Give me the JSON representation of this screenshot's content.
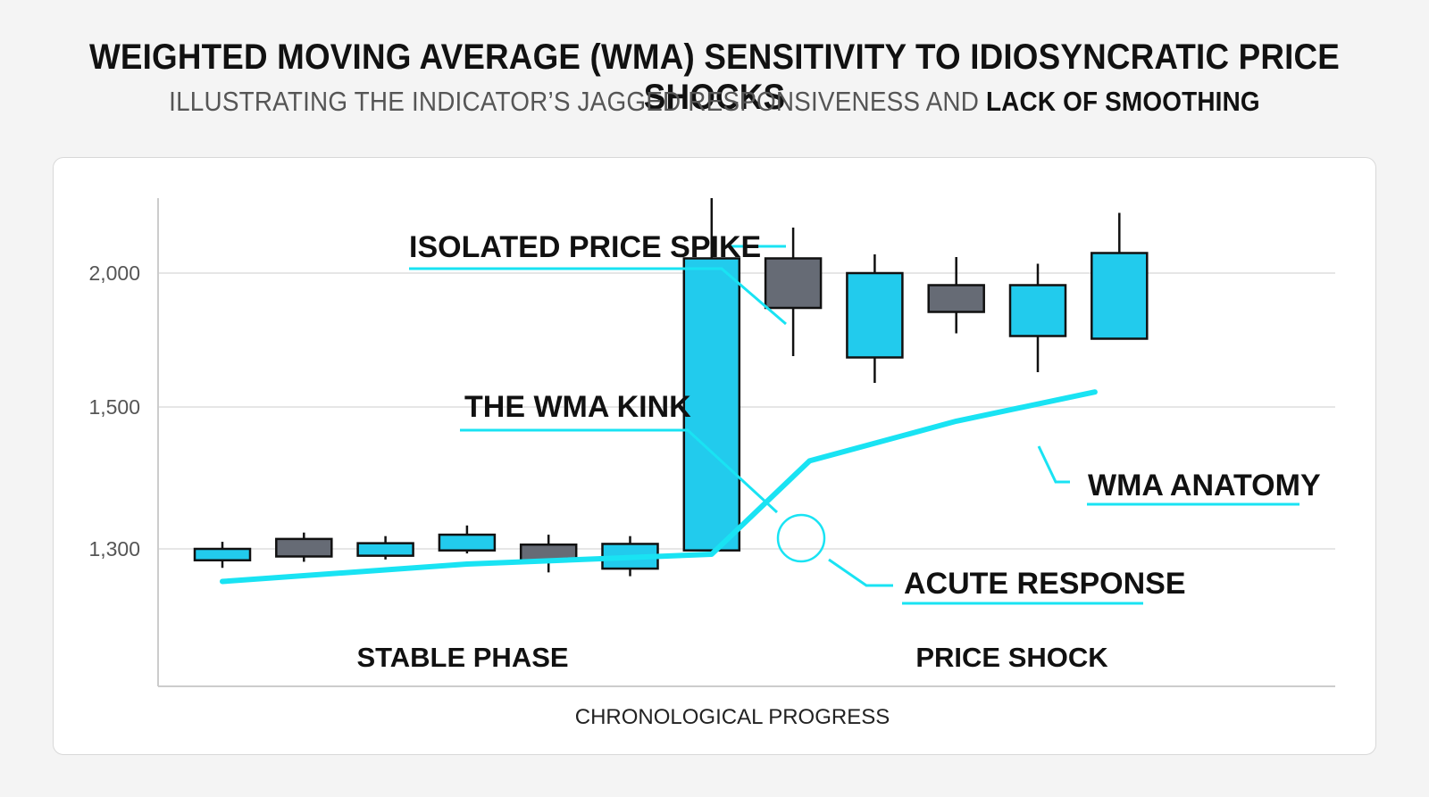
{
  "title": "WEIGHTED MOVING AVERAGE (WMA) SENSITIVITY TO IDIOSYNCRATIC PRICE SHOCKS",
  "subtitle": {
    "regular": "ILLUSTRATING THE INDICATOR’S JAGGED RESPONSIVENESS AND ",
    "bold": "LACK OF SMOOTHING"
  },
  "colors": {
    "bullish": "#22cbed",
    "bearish": "#666b75",
    "wma_line": "#19e3f3",
    "grid": "#dedede",
    "text": "#111111"
  },
  "chart_data": {
    "type": "candlestick",
    "title": "WEIGHTED MOVING AVERAGE (WMA) SENSITIVITY TO IDIOSYNCRATIC PRICE SHOCKS",
    "xlabel": "CHRONOLOGICAL PROGRESS",
    "ylabel": "",
    "y_ticks": [
      {
        "value": 1300,
        "label": "1,300"
      },
      {
        "value": 1500,
        "label": "1,500"
      },
      {
        "value": 2000,
        "label": "2,000"
      }
    ],
    "y_scale": "piecewise",
    "grid": true,
    "candles": [
      {
        "open": 1285,
        "close": 1300,
        "high": 1310,
        "low": 1275,
        "direction": "up"
      },
      {
        "open": 1314,
        "close": 1290,
        "high": 1323,
        "low": 1283,
        "direction": "down"
      },
      {
        "open": 1291,
        "close": 1308,
        "high": 1318,
        "low": 1286,
        "direction": "up"
      },
      {
        "open": 1298,
        "close": 1320,
        "high": 1333,
        "low": 1294,
        "direction": "up"
      },
      {
        "open": 1306,
        "close": 1284,
        "high": 1320,
        "low": 1269,
        "direction": "down"
      },
      {
        "open": 1274,
        "close": 1307,
        "high": 1318,
        "low": 1264,
        "direction": "up"
      },
      {
        "open": 1298,
        "close": 2055,
        "high": 2280,
        "low": 1298,
        "direction": "up"
      },
      {
        "open": 2055,
        "close": 1870,
        "high": 2170,
        "low": 1690,
        "direction": "down"
      },
      {
        "open": 1685,
        "close": 2000,
        "high": 2070,
        "low": 1590,
        "direction": "up"
      },
      {
        "open": 1955,
        "close": 1855,
        "high": 2060,
        "low": 1775,
        "direction": "down"
      },
      {
        "open": 1765,
        "close": 1955,
        "high": 2035,
        "low": 1630,
        "direction": "up"
      },
      {
        "open": 1755,
        "close": 2075,
        "high": 2225,
        "low": 1755,
        "direction": "up"
      }
    ],
    "wma": {
      "name": "WMA",
      "values": [
        {
          "x": 0,
          "y": 1257
        },
        {
          "x": 3,
          "y": 1280
        },
        {
          "x": 6,
          "y": 1293
        },
        {
          "x": 7.2,
          "y": 1424
        },
        {
          "x": 9,
          "y": 1480
        },
        {
          "x": 10.7,
          "y": 1556
        }
      ]
    },
    "phase_labels": [
      "STABLE PHASE",
      "PRICE SHOCK"
    ],
    "annotations": [
      {
        "text": "ISOLATED PRICE SPIKE"
      },
      {
        "text": "THE WMA KINK"
      },
      {
        "text": "WMA ANATOMY"
      },
      {
        "text": "ACUTE RESPONSE"
      }
    ]
  }
}
